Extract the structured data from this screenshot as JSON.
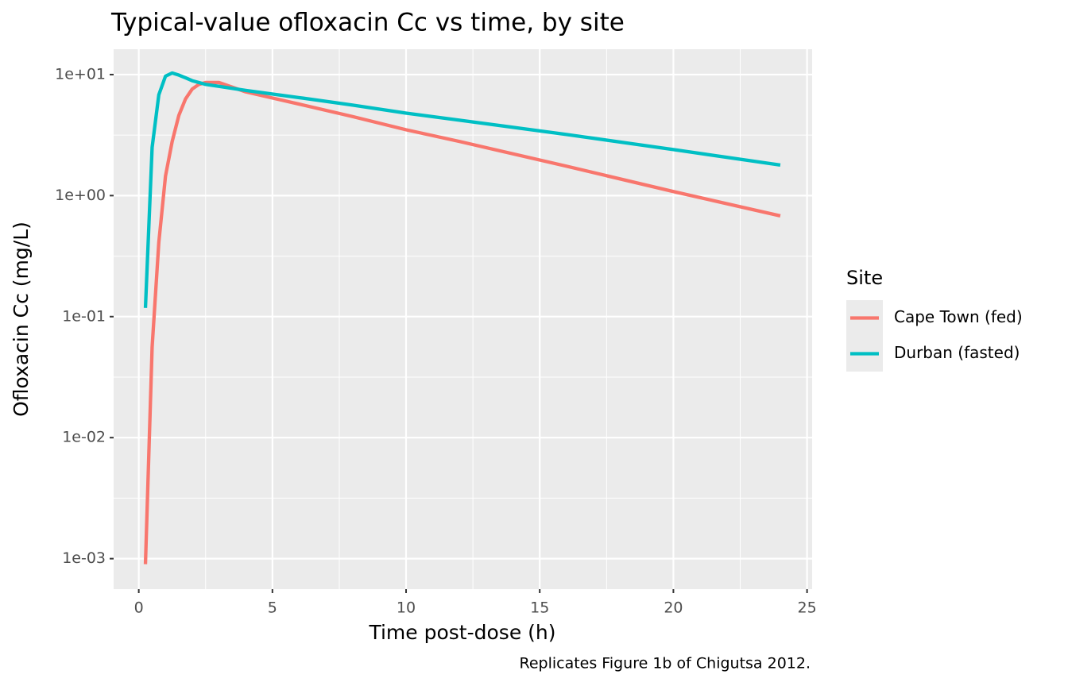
{
  "chart_data": {
    "type": "line",
    "title": "Typical-value ofloxacin Cc vs time, by site",
    "xlabel": "Time post-dose (h)",
    "ylabel": "Ofloxacin Cc (mg/L)",
    "caption": "Replicates Figure 1b of Chigutsa 2012.",
    "legend_title": "Site",
    "legend_position": "right",
    "log_y": true,
    "grid": true,
    "x": [
      0.25,
      0.5,
      0.75,
      1,
      1.25,
      1.5,
      1.75,
      2,
      2.25,
      2.5,
      3,
      4,
      6,
      8,
      10,
      12,
      16,
      20,
      24
    ],
    "series": [
      {
        "name": "Cape Town (fed)",
        "color": "#F8766D",
        "values": [
          0.0009,
          0.056,
          0.41,
          1.45,
          2.8,
          4.6,
          6.3,
          7.6,
          8.3,
          8.6,
          8.6,
          7.2,
          5.7,
          4.5,
          3.5,
          2.8,
          1.75,
          1.08,
          0.68
        ]
      },
      {
        "name": "Durban (fasted)",
        "color": "#00BFC4",
        "values": [
          0.118,
          2.5,
          6.8,
          9.7,
          10.3,
          9.9,
          9.4,
          8.9,
          8.6,
          8.3,
          8.0,
          7.4,
          6.45,
          5.6,
          4.8,
          4.2,
          3.2,
          2.4,
          1.79
        ]
      }
    ],
    "xlim": [
      -0.94,
      25.19
    ],
    "xticks": [
      0,
      5,
      10,
      15,
      20,
      25
    ],
    "ylim": [
      0.00056,
      16.2
    ],
    "yticks": [
      {
        "value": 0.001,
        "label": "1e-03"
      },
      {
        "value": 0.01,
        "label": "1e-02"
      },
      {
        "value": 0.1,
        "label": "1e-01"
      },
      {
        "value": 1,
        "label": "1e+00"
      },
      {
        "value": 10,
        "label": "1e+01"
      }
    ]
  }
}
